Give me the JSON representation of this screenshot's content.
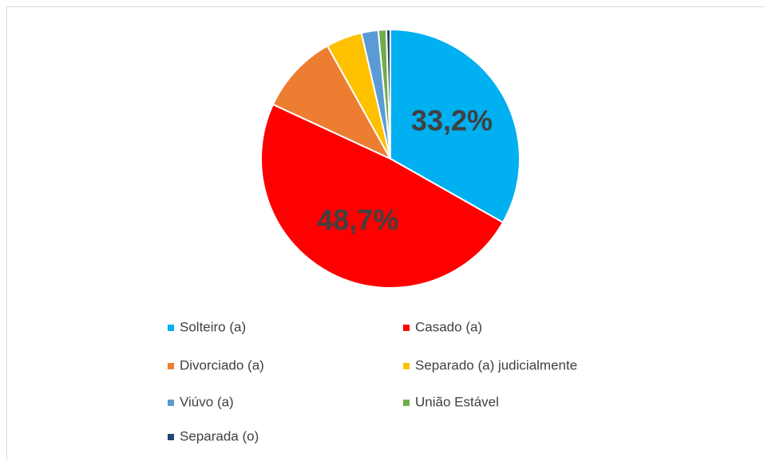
{
  "chart_data": {
    "type": "pie",
    "categories": [
      "Solteiro (a)",
      "Casado (a)",
      "Divorciado (a)",
      "Separado (a) judicialmente",
      "Viúvo (a)",
      "União Estável",
      "Separada (o)"
    ],
    "values": [
      33.2,
      48.7,
      10,
      4.5,
      2.1,
      1,
      0.5
    ],
    "value_labels": [
      "33,2%",
      "48,7%",
      null,
      null,
      null,
      null,
      null
    ],
    "colors": [
      "#00b0f0",
      "#ff0000",
      "#ed7d31",
      "#ffc000",
      "#5b9bd5",
      "#70ad47",
      "#264478"
    ],
    "legend": "bottom"
  }
}
